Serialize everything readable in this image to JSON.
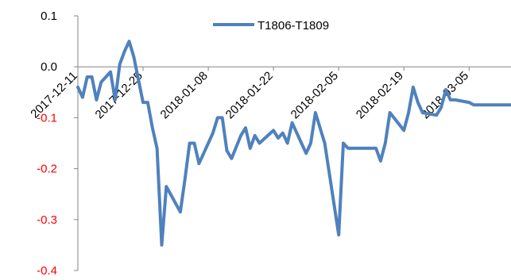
{
  "chart_data": {
    "type": "line",
    "title": "",
    "xlabel": "",
    "ylabel": "",
    "ylim": [
      -0.4,
      0.1
    ],
    "yticks": [
      0.1,
      0.0,
      -0.1,
      -0.2,
      -0.3,
      -0.4
    ],
    "ytick_labels": [
      "0.1",
      "0.0",
      "-0.1",
      "-0.2",
      "-0.3",
      "-0.4"
    ],
    "negative_tick_color": "#ff0000",
    "positive_tick_color": "#000000",
    "xlim": [
      "2017-12-11",
      "2018-03-14"
    ],
    "xticks": [
      "2017-12-11",
      "2017-12-25",
      "2018-01-08",
      "2018-01-22",
      "2018-02-05",
      "2018-02-19",
      "2018-03-05"
    ],
    "grid": false,
    "legend": {
      "position": "top-center"
    },
    "series": [
      {
        "name": "T1806-T1809",
        "color": "#4f81bd",
        "x": [
          "2017-12-11",
          "2017-12-12",
          "2017-12-13",
          "2017-12-14",
          "2017-12-15",
          "2017-12-16",
          "2017-12-18",
          "2017-12-19",
          "2017-12-20",
          "2017-12-21",
          "2017-12-22",
          "2017-12-23",
          "2017-12-25",
          "2017-12-26",
          "2017-12-27",
          "2017-12-28",
          "2017-12-29",
          "2017-12-30",
          "2018-01-02",
          "2018-01-03",
          "2018-01-04",
          "2018-01-05",
          "2018-01-06",
          "2018-01-08",
          "2018-01-09",
          "2018-01-10",
          "2018-01-11",
          "2018-01-12",
          "2018-01-13",
          "2018-01-15",
          "2018-01-16",
          "2018-01-17",
          "2018-01-18",
          "2018-01-19",
          "2018-01-22",
          "2018-01-23",
          "2018-01-24",
          "2018-01-25",
          "2018-01-26",
          "2018-01-29",
          "2018-01-30",
          "2018-01-31",
          "2018-02-01",
          "2018-02-02",
          "2018-02-05",
          "2018-02-06",
          "2018-02-07",
          "2018-02-08",
          "2018-02-09",
          "2018-02-12",
          "2018-02-13",
          "2018-02-14",
          "2018-02-15",
          "2018-02-16",
          "2018-02-19",
          "2018-02-20",
          "2018-02-21",
          "2018-02-22",
          "2018-02-23",
          "2018-02-26",
          "2018-02-27",
          "2018-02-28",
          "2018-03-01",
          "2018-03-02",
          "2018-03-05",
          "2018-03-06",
          "2018-03-07",
          "2018-03-08",
          "2018-03-09",
          "2018-03-12",
          "2018-03-13",
          "2018-03-14"
        ],
        "y": [
          -0.04,
          -0.06,
          -0.02,
          -0.02,
          -0.065,
          -0.03,
          -0.01,
          -0.065,
          0.005,
          0.03,
          0.05,
          0.02,
          -0.07,
          -0.07,
          -0.12,
          -0.16,
          -0.35,
          -0.235,
          -0.285,
          -0.22,
          -0.15,
          -0.15,
          -0.19,
          -0.15,
          -0.13,
          -0.1,
          -0.1,
          -0.165,
          -0.18,
          -0.135,
          -0.12,
          -0.16,
          -0.135,
          -0.15,
          -0.125,
          -0.14,
          -0.13,
          -0.15,
          -0.11,
          -0.17,
          -0.15,
          -0.09,
          -0.12,
          -0.15,
          -0.33,
          -0.15,
          -0.16,
          -0.16,
          -0.16,
          -0.16,
          -0.16,
          -0.185,
          -0.15,
          -0.09,
          -0.125,
          -0.09,
          -0.04,
          -0.07,
          -0.09,
          -0.095,
          -0.08,
          -0.045,
          -0.065,
          -0.065,
          -0.07,
          -0.075,
          -0.075,
          -0.075,
          -0.075,
          -0.075,
          -0.075,
          -0.075
        ]
      }
    ]
  }
}
